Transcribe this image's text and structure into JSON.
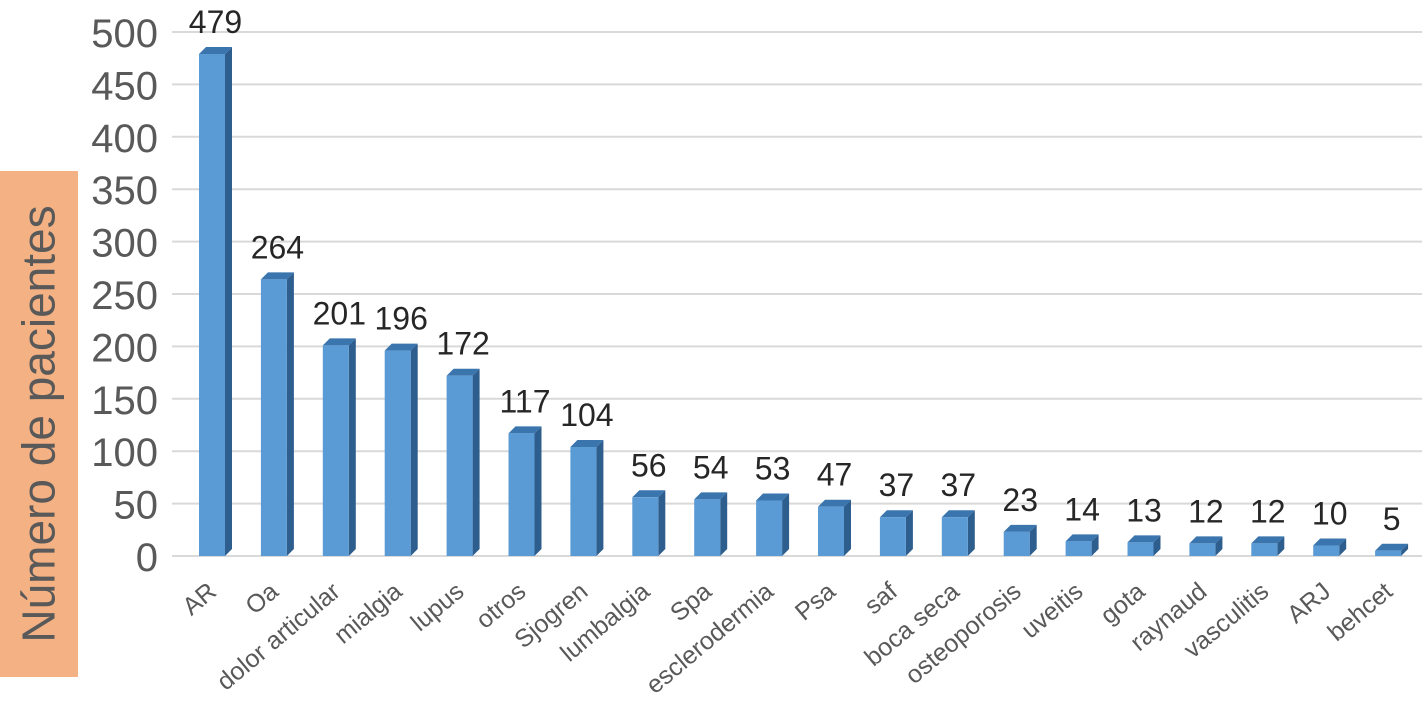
{
  "chart_data": {
    "type": "bar",
    "title": "",
    "xlabel": "",
    "ylabel": "Número de pacientes",
    "ylim": [
      0,
      500
    ],
    "yticks": [
      0,
      50,
      100,
      150,
      200,
      250,
      300,
      350,
      400,
      450,
      500
    ],
    "grid": true,
    "legend": "none",
    "style": "3d-column",
    "categories": [
      "AR",
      "Oa",
      "dolor articular",
      "mialgia",
      "lupus",
      "otros",
      "Sjogren",
      "lumbalgia",
      "Spa",
      "esclerodermia",
      "Psa",
      "saf",
      "boca seca",
      "osteoporosis",
      "uveitis",
      "gota",
      "raynaud",
      "vasculitis",
      "ARJ",
      "behcet"
    ],
    "values": [
      479,
      264,
      201,
      196,
      172,
      117,
      104,
      56,
      54,
      53,
      47,
      37,
      37,
      23,
      14,
      13,
      12,
      12,
      10,
      5
    ],
    "data_labels": [
      "479",
      "264",
      "201",
      "196",
      "172",
      "117",
      "104",
      "56",
      "54",
      "53",
      "47",
      "37",
      "37",
      "23",
      "14",
      "13",
      "12",
      "12",
      "10",
      "5"
    ],
    "colors": {
      "bar_front": "#5B9BD5",
      "bar_side": "#2E5E8E",
      "bar_top": "#3A75AE",
      "ylabel_background": "#F4B183",
      "ylabel_text": "#595959",
      "tick_text": "#595959",
      "data_label_text": "#262626",
      "gridline": "#D9D9D9"
    }
  }
}
